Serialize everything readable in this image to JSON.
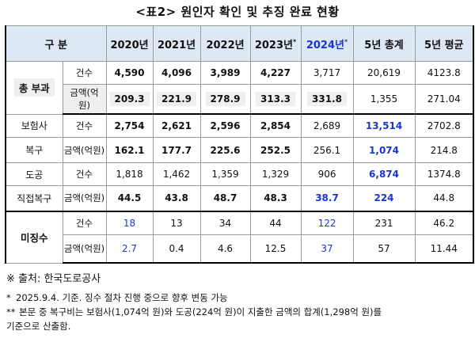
{
  "title": "<표2> 원인자 확인 및 추징 완료 현황",
  "header": {
    "col0": "구 분",
    "years": [
      "2020년",
      "2021년",
      "2022년",
      "2023년",
      "2024년"
    ],
    "y2023_mark": "*",
    "y2024_mark": "*",
    "total": "5년 총계",
    "avg": "5년 평균"
  },
  "rows": {
    "total_group": "총 부과",
    "recovery_group_a": "보험사",
    "recovery_group_b": "복구",
    "dogong": "도공",
    "direct": "직접복구",
    "unpaid": "미징수",
    "count_label": "건수",
    "amount_label": "금액(억원)",
    "total_count": [
      "4,590",
      "4,096",
      "3,989",
      "4,227",
      "3,717",
      "20,619",
      "4123.8"
    ],
    "total_amount": [
      "209.3",
      "221.9",
      "278.9",
      "313.3",
      "331.8",
      "1,355",
      "271.04"
    ],
    "ins_count": [
      "2,754",
      "2,621",
      "2,596",
      "2,854",
      "2,689",
      "13,514",
      "2702.8"
    ],
    "ins_amount": [
      "162.1",
      "177.7",
      "225.6",
      "252.5",
      "256.1",
      "1,074",
      "214.8"
    ],
    "dg_count": [
      "1,818",
      "1,462",
      "1,359",
      "1,329",
      "906",
      "6,874",
      "1374.8"
    ],
    "dg_amount": [
      "44.5",
      "43.8",
      "48.7",
      "48.3",
      "38.7",
      "224",
      "44.8"
    ],
    "un_count": [
      "18",
      "13",
      "34",
      "44",
      "122",
      "231",
      "46.2"
    ],
    "un_amount": [
      "2.7",
      "0.4",
      "4.6",
      "12.5",
      "37",
      "57",
      "11.44"
    ]
  },
  "notes": {
    "source": "※ 출처: 한국도로공사",
    "n1_mark": "*",
    "n1": "2025.9.4. 기준. 징수 절차 진행 중으로 향후 변동 가능",
    "n2_mark": "**",
    "n2a": "본문 중 복구비는 보험사(1,074억 원)와 도공(224억 원)이 지출한 금액의 합계(1,298억 원)를",
    "n2b": "기준으로 산출함."
  },
  "colors": {
    "header_bg": "#dde8f5",
    "highlight_blue": "#1a35d6",
    "shade": "#efefef"
  }
}
